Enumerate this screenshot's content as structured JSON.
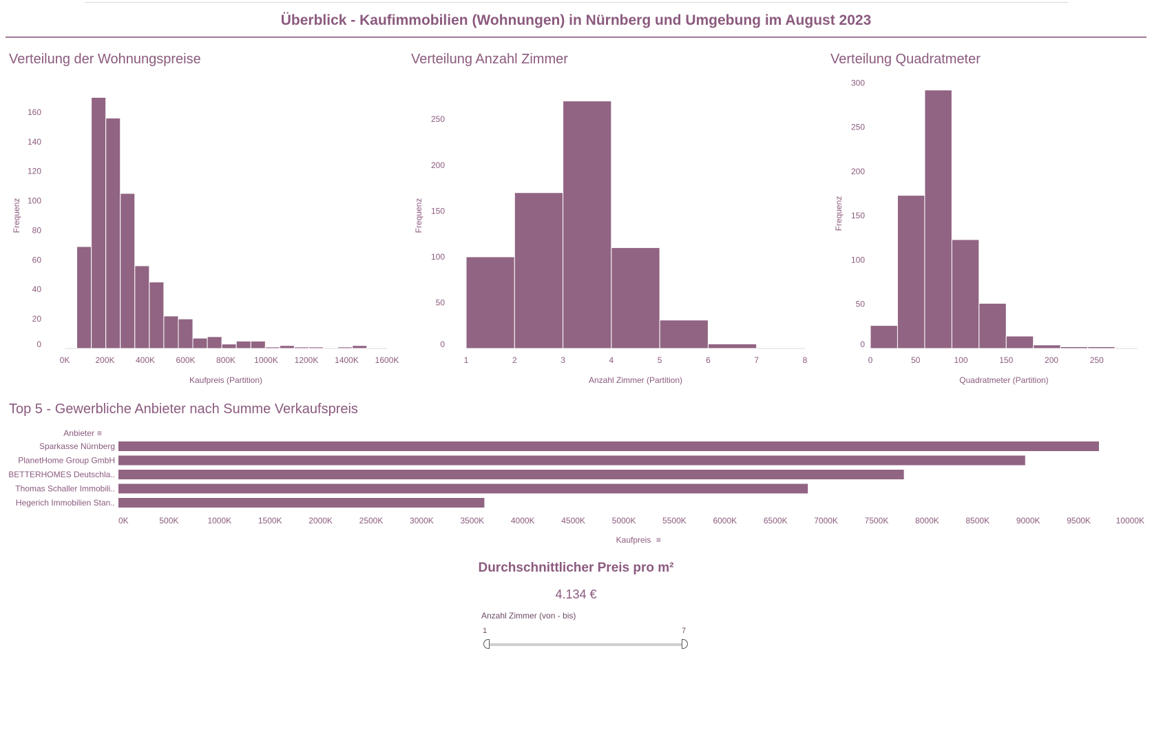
{
  "page": {
    "title": "Überblick - Kaufimmobilien (Wohnungen) in Nürnberg und Umgebung im August 2023",
    "accent_color": "#916483"
  },
  "charts": {
    "prices_title": "Verteilung der Wohnungspreise",
    "rooms_title": "Verteilung Anzahl Zimmer",
    "sqm_title": "Verteilung Quadratmeter",
    "top5_title": "Top 5 - Gewerbliche Anbieter nach Summe Verkaufspreis"
  },
  "kpi": {
    "title": "Durchschnittlicher Preis pro m²",
    "value": "4.134 €"
  },
  "filter": {
    "label": "Anzahl Zimmer (von - bis)",
    "min_label": "1",
    "max_label": "7",
    "range": [
      1,
      7
    ]
  },
  "chart_data": [
    {
      "type": "bar",
      "title": "Verteilung der Wohnungspreise",
      "xlabel": "Kaufpreis (Partition)",
      "ylabel": "Frequenz",
      "bin_width": 72000,
      "bin_start": 60000,
      "values": [
        69,
        170,
        156,
        105,
        56,
        45,
        22,
        20,
        7,
        8,
        3,
        5,
        5,
        1,
        2,
        1,
        1,
        0,
        1,
        2
      ],
      "xticks": [
        "0K",
        "200K",
        "400K",
        "600K",
        "800K",
        "1000K",
        "1200K",
        "1400K",
        "1600K"
      ],
      "yticks": [
        "0",
        "20",
        "40",
        "60",
        "80",
        "100",
        "120",
        "140",
        "160"
      ]
    },
    {
      "type": "bar",
      "title": "Verteilung Anzahl Zimmer",
      "xlabel": "Anzahl Zimmer (Partition)",
      "ylabel": "Frequenz",
      "bin_width": 1,
      "bin_start": 1,
      "values": [
        100,
        170,
        270,
        110,
        31,
        5,
        0
      ],
      "xticks": [
        "1",
        "2",
        "3",
        "4",
        "5",
        "6",
        "7",
        "8"
      ],
      "yticks": [
        "0",
        "50",
        "100",
        "150",
        "200",
        "250"
      ]
    },
    {
      "type": "bar",
      "title": "Verteilung Quadratmeter",
      "xlabel": "Quadratmeter (Partition)",
      "ylabel": "Frequenz",
      "bin_width": 30,
      "bin_start": 0,
      "values": [
        26,
        173,
        292,
        123,
        51,
        14,
        4,
        2,
        2
      ],
      "xticks": [
        "0",
        "50",
        "100",
        "150",
        "200",
        "250"
      ],
      "yticks": [
        "0",
        "50",
        "100",
        "150",
        "200",
        "250",
        "300"
      ]
    },
    {
      "type": "bar",
      "orientation": "horizontal",
      "title": "Top 5 - Gewerbliche Anbieter nach Summe Verkaufspreis",
      "ylabel": "Anbieter",
      "xlabel": "Kaufpreis",
      "categories": [
        "Sparkasse Nürnberg",
        "PlanetHome Group GmbH",
        "BETTERHOMES Deutschla..",
        "Thomas Schaller Immobili..",
        "Hegerich Immobilien Stan.."
      ],
      "values": [
        9700000,
        8970000,
        7770000,
        6820000,
        3620000
      ],
      "xticks": [
        "0K",
        "500K",
        "1000K",
        "1500K",
        "2000K",
        "2500K",
        "3000K",
        "3500K",
        "4000K",
        "4500K",
        "5000K",
        "5500K",
        "6000K",
        "6500K",
        "7000K",
        "7500K",
        "8000K",
        "8500K",
        "9000K",
        "9500K",
        "10000K"
      ]
    }
  ]
}
